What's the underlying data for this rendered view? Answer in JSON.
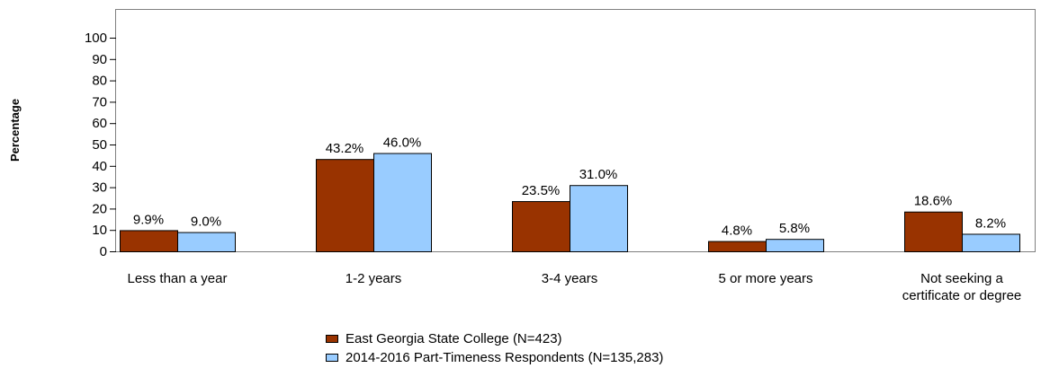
{
  "chart_data": {
    "type": "bar",
    "ylabel": "Percentage",
    "xlabel": "",
    "ylim": [
      0,
      100
    ],
    "yticks": [
      0,
      10,
      20,
      30,
      40,
      50,
      60,
      70,
      80,
      90,
      100
    ],
    "grid": false,
    "legend_position": "bottom-center",
    "categories": [
      [
        "Less than a year"
      ],
      [
        "1-2 years"
      ],
      [
        "3-4 years"
      ],
      [
        "5 or more years"
      ],
      [
        "Not seeking a",
        "certificate or degree"
      ]
    ],
    "series": [
      {
        "name": "East Georgia State College (N=423)",
        "color": "#993300",
        "values": [
          9.9,
          43.2,
          23.5,
          4.8,
          18.6
        ],
        "labels": [
          "9.9%",
          "43.2%",
          "23.5%",
          "4.8%",
          "18.6%"
        ]
      },
      {
        "name": "2014-2016 Part-Timeness Respondents (N=135,283)",
        "color": "#99CCFF",
        "values": [
          9.0,
          46.0,
          31.0,
          5.8,
          8.2
        ],
        "labels": [
          "9.0%",
          "46.0%",
          "31.0%",
          "5.8%",
          "8.2%"
        ]
      }
    ]
  }
}
